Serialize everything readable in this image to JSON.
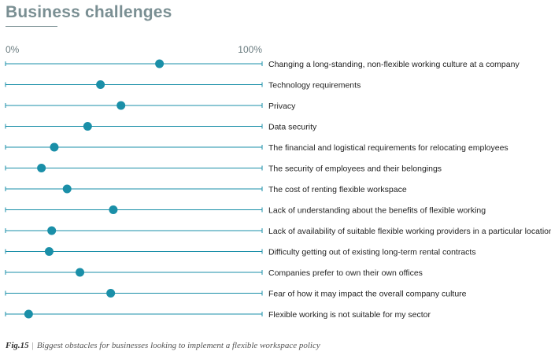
{
  "title": "Business challenges",
  "caption": {
    "fig": "Fig.15",
    "separator": "|",
    "text": "Biggest obstacles for businesses looking to implement a flexible workspace policy"
  },
  "colors": {
    "accent": "#1a8fa8",
    "title": "#7a8f93"
  },
  "chart_data": {
    "type": "scatter",
    "orientation": "horizontal dot plot",
    "xlim": [
      0,
      100
    ],
    "x_tick_labels": [
      "0%",
      "100%"
    ],
    "grid": false,
    "categories": [
      "Changing a long-standing, non-flexible working culture at a company",
      "Technology requirements",
      "Privacy",
      "Data security",
      "The financial and logistical requirements for relocating employees",
      "The security of employees and their belongings",
      "The cost of renting flexible workspace",
      "Lack of understanding about the benefits of flexible working",
      "Lack of availability of suitable flexible working providers in a particular location",
      "Difficulty getting out of existing long-term rental contracts",
      "Companies prefer to own their own offices",
      "Fear of how it may impact the overall company culture",
      "Flexible working is not suitable for my sector"
    ],
    "values": [
      60,
      37,
      45,
      32,
      19,
      14,
      24,
      42,
      18,
      17,
      29,
      41,
      9
    ]
  }
}
